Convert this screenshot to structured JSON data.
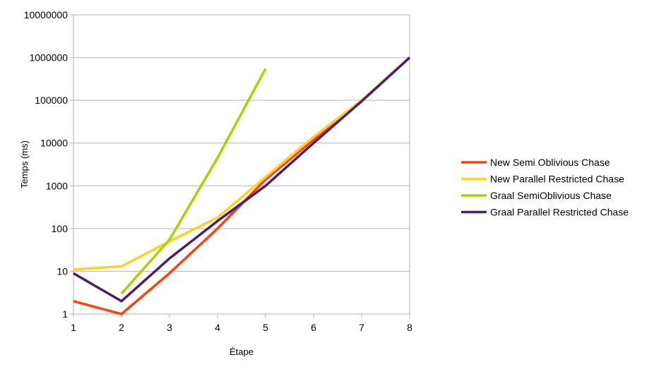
{
  "chart_data": {
    "type": "line",
    "xlabel": "Étape",
    "ylabel": "Temps (ms)",
    "x_scale": "linear",
    "y_scale": "log",
    "xlim": [
      1,
      8
    ],
    "ylim": [
      1,
      10000000
    ],
    "x_ticks": [
      "1",
      "2",
      "3",
      "4",
      "5",
      "6",
      "7",
      "8"
    ],
    "y_ticks": [
      "1",
      "10",
      "100",
      "1000",
      "10000",
      "100000",
      "1000000",
      "10000000"
    ],
    "grid": "horizontal",
    "legend_position": "right",
    "series": [
      {
        "name": "New Semi Oblivious Chase",
        "color": "#ff420e",
        "x": [
          1,
          2,
          3,
          4,
          5,
          6,
          7,
          8
        ],
        "values": [
          2,
          1,
          9,
          100,
          1400,
          12000,
          95000,
          1000000
        ]
      },
      {
        "name": "New Parallel Restricted Chase",
        "color": "#ffd320",
        "x": [
          1,
          2,
          3,
          4,
          5,
          6,
          7,
          8
        ],
        "values": [
          11,
          13,
          50,
          180,
          1600,
          14000,
          100000,
          1000000
        ]
      },
      {
        "name": "Graal SemiOblivious Chase",
        "color": "#aecf00",
        "x": [
          2,
          3,
          4,
          5
        ],
        "values": [
          3,
          55,
          4500,
          550000
        ]
      },
      {
        "name": "Graal Parallel Restricted Chase",
        "color": "#4b1f6f",
        "x": [
          1,
          2,
          3,
          4,
          5,
          6,
          7,
          8
        ],
        "values": [
          9,
          2,
          20,
          150,
          1000,
          10000,
          95000,
          1000000
        ]
      }
    ]
  }
}
